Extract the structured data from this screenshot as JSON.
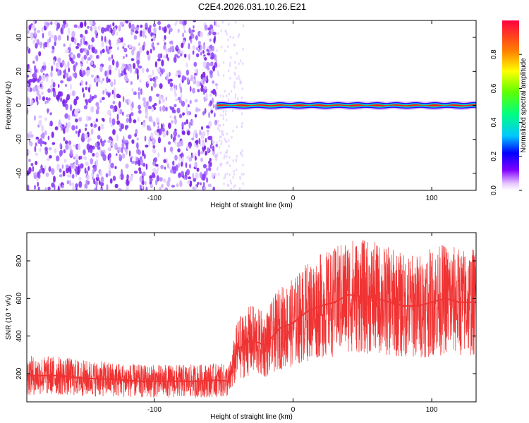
{
  "title": "C2E4.2026.031.10.26.E21",
  "chart_data": [
    {
      "type": "heatmap",
      "xlabel": "Height of straight line (km)",
      "ylabel": "Frequency (Hz)",
      "xlim": [
        -192,
        132
      ],
      "ylim": [
        -50,
        50
      ],
      "x_ticks": [
        -100,
        0,
        100
      ],
      "x_tick_labels": [
        "-100",
        "0",
        "100"
      ],
      "y_ticks": [
        -40,
        -20,
        0,
        20,
        40
      ],
      "y_tick_labels": [
        "-40",
        "-20",
        "0",
        "20",
        "40"
      ],
      "colorbar": {
        "label": "Normalized spectral amplitude",
        "range": [
          0,
          1
        ],
        "ticks": [
          0.0,
          0.2,
          0.4,
          0.6,
          0.8
        ],
        "tick_labels": [
          "0.0",
          "0.2",
          "0.4",
          "0.6",
          "0.8"
        ]
      },
      "regions": [
        {
          "x_range": [
            -192,
            -55
          ],
          "description": "broadband noise",
          "amplitude": 0.15
        },
        {
          "x_range": [
            -55,
            132
          ],
          "description": "narrow band near 0 Hz",
          "amplitude": 0.9
        }
      ]
    },
    {
      "type": "line",
      "xlabel": "Height of straight line (km)",
      "ylabel": "SNR (10 * v/v)",
      "xlim": [
        -192,
        132
      ],
      "ylim": [
        50,
        950
      ],
      "x_ticks": [
        -100,
        0,
        100
      ],
      "x_tick_labels": [
        "-100",
        "0",
        "100"
      ],
      "y_ticks": [
        200,
        400,
        600,
        800
      ],
      "y_tick_labels": [
        "200",
        "400",
        "600",
        "800"
      ],
      "color": "#f03232",
      "x": [
        -192,
        -170,
        -150,
        -130,
        -110,
        -90,
        -70,
        -55,
        -46,
        -40,
        -30,
        -20,
        -10,
        0,
        10,
        20,
        30,
        40,
        50,
        60,
        70,
        80,
        90,
        100,
        110,
        120,
        132
      ],
      "y": [
        190,
        190,
        175,
        170,
        160,
        160,
        160,
        165,
        160,
        330,
        380,
        350,
        440,
        470,
        530,
        560,
        580,
        620,
        610,
        600,
        580,
        560,
        560,
        580,
        600,
        580,
        580
      ]
    }
  ]
}
